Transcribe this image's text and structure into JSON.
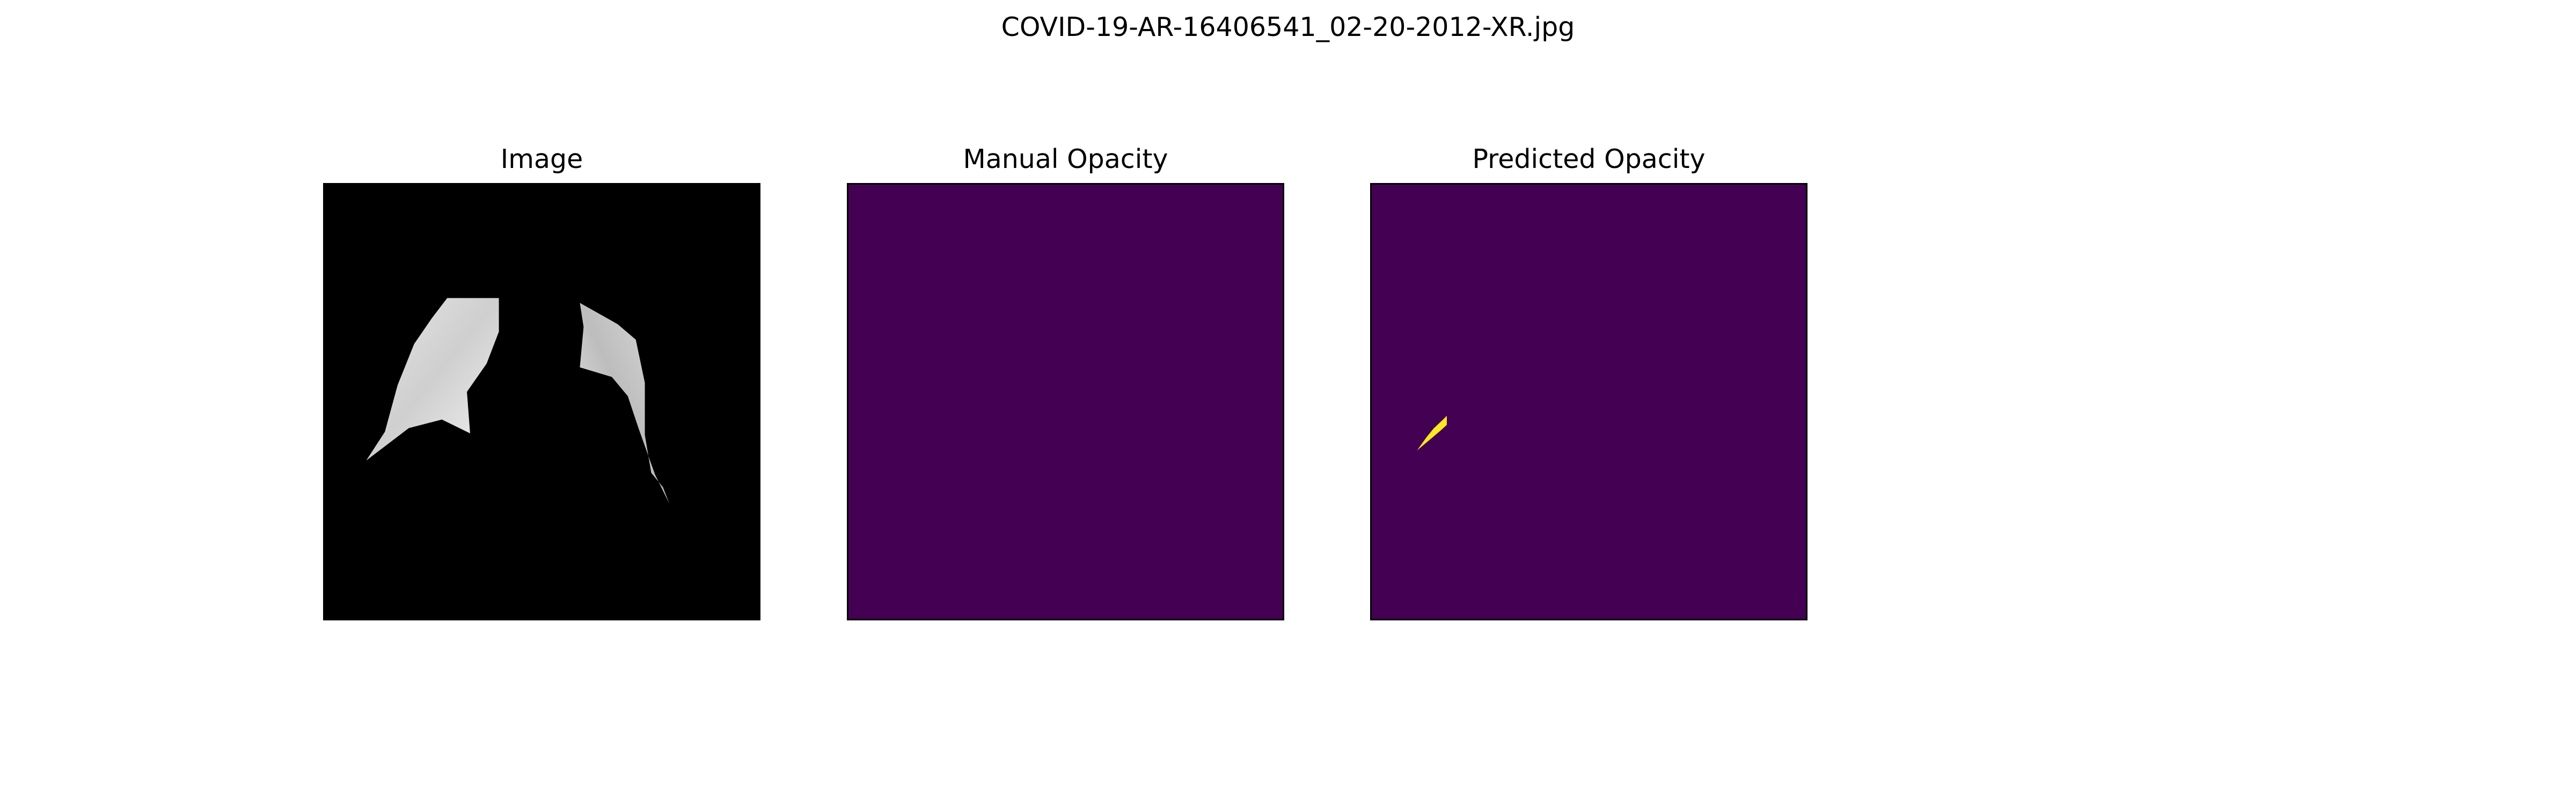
{
  "figure": {
    "title": "COVID-19-AR-16406541_02-20-2012-XR.jpg"
  },
  "panels": [
    {
      "title": "Image",
      "content": "chest X-ray with lung regions shown in grayscale, black background"
    },
    {
      "title": "Manual Opacity",
      "content": "empty opacity mask"
    },
    {
      "title": "Predicted Opacity",
      "content": "opacity mask with one small predicted region"
    }
  ],
  "colors": {
    "background": "#ffffff",
    "image_background": "#000000",
    "mask_background": "#440154",
    "mask_foreground": "#fde725"
  }
}
